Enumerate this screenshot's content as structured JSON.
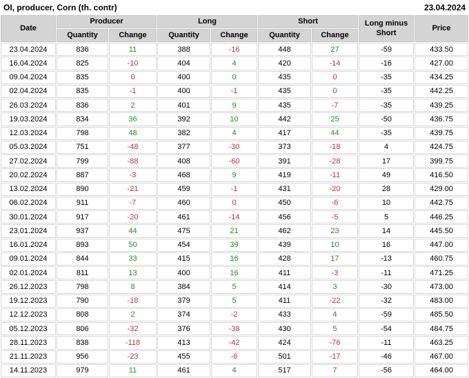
{
  "title": "OI, producer, Corn (th. contr)",
  "report_date": "23.04.2024",
  "colors": {
    "positive_change": "#189618",
    "negative_change": "#c93232",
    "header_bg": "#d4d4d4",
    "grid_line": "#d8d8d8"
  },
  "table": {
    "headers": {
      "date": "Date",
      "producer": "Producer",
      "long": "Long",
      "short": "Short",
      "long_minus_short": "Long minus Short",
      "price": "Price",
      "quantity": "Quantity",
      "change": "Change"
    },
    "rows": [
      [
        "23.04.2024",
        "836",
        "11",
        "g",
        "388",
        "-16",
        "r",
        "448",
        "27",
        "g",
        "-59",
        "433.50"
      ],
      [
        "16.04.2024",
        "825",
        "-10",
        "r",
        "404",
        "4",
        "g",
        "420",
        "-14",
        "r",
        "-16",
        "427.00"
      ],
      [
        "09.04.2024",
        "835",
        "0",
        "r",
        "400",
        "0",
        "g",
        "435",
        "0",
        "r",
        "-35",
        "434.25"
      ],
      [
        "02.04.2024",
        "835",
        "-1",
        "r",
        "400",
        "-1",
        "r",
        "435",
        "0",
        "g",
        "-35",
        "442.25"
      ],
      [
        "26.03.2024",
        "836",
        "2",
        "g",
        "401",
        "9",
        "g",
        "435",
        "-7",
        "r",
        "-35",
        "439.25"
      ],
      [
        "19.03.2024",
        "834",
        "36",
        "g",
        "392",
        "10",
        "g",
        "442",
        "25",
        "g",
        "-50",
        "436.75"
      ],
      [
        "12.03.2024",
        "798",
        "48",
        "g",
        "382",
        "4",
        "g",
        "417",
        "44",
        "g",
        "-35",
        "439.75"
      ],
      [
        "05.03.2024",
        "751",
        "-48",
        "r",
        "377",
        "-30",
        "r",
        "373",
        "-18",
        "r",
        "4",
        "424.75"
      ],
      [
        "27.02.2024",
        "799",
        "-88",
        "r",
        "408",
        "-60",
        "r",
        "391",
        "-28",
        "r",
        "17",
        "399.75"
      ],
      [
        "20.02.2024",
        "887",
        "-3",
        "r",
        "468",
        "9",
        "g",
        "419",
        "-11",
        "r",
        "49",
        "416.50"
      ],
      [
        "13.02.2024",
        "890",
        "-21",
        "r",
        "459",
        "-1",
        "r",
        "431",
        "-20",
        "r",
        "28",
        "429.00"
      ],
      [
        "06.02.2024",
        "911",
        "-7",
        "r",
        "460",
        "0",
        "r",
        "450",
        "-6",
        "r",
        "10",
        "442.75"
      ],
      [
        "30.01.2024",
        "917",
        "-20",
        "r",
        "461",
        "-14",
        "r",
        "456",
        "-5",
        "r",
        "5",
        "446.25"
      ],
      [
        "23.01.2024",
        "937",
        "44",
        "g",
        "475",
        "21",
        "g",
        "462",
        "23",
        "g",
        "14",
        "445.50"
      ],
      [
        "16.01.2024",
        "893",
        "50",
        "g",
        "454",
        "39",
        "g",
        "439",
        "10",
        "g",
        "16",
        "447.00"
      ],
      [
        "09.01.2024",
        "844",
        "33",
        "g",
        "415",
        "16",
        "g",
        "428",
        "17",
        "g",
        "-13",
        "460.75"
      ],
      [
        "02.01.2024",
        "811",
        "13",
        "g",
        "400",
        "16",
        "g",
        "411",
        "-3",
        "r",
        "-11",
        "471.25"
      ],
      [
        "26.12.2023",
        "798",
        "8",
        "g",
        "384",
        "5",
        "g",
        "414",
        "3",
        "g",
        "-30",
        "473.00"
      ],
      [
        "19.12.2023",
        "790",
        "-18",
        "r",
        "379",
        "5",
        "g",
        "411",
        "-22",
        "r",
        "-32",
        "483.00"
      ],
      [
        "12.12.2023",
        "808",
        "2",
        "g",
        "374",
        "-2",
        "r",
        "433",
        "4",
        "g",
        "-59",
        "485.50"
      ],
      [
        "05.12.2023",
        "806",
        "-32",
        "r",
        "376",
        "-38",
        "r",
        "430",
        "5",
        "g",
        "-54",
        "484.75"
      ],
      [
        "28.11.2023",
        "838",
        "-118",
        "r",
        "413",
        "-42",
        "r",
        "424",
        "-76",
        "r",
        "-11",
        "463.25"
      ],
      [
        "21.11.2023",
        "956",
        "-23",
        "r",
        "455",
        "-6",
        "r",
        "501",
        "-17",
        "r",
        "-46",
        "467.00"
      ],
      [
        "14.11.2023",
        "979",
        "11",
        "g",
        "461",
        "4",
        "g",
        "517",
        "7",
        "g",
        "-56",
        "464.00"
      ]
    ]
  }
}
